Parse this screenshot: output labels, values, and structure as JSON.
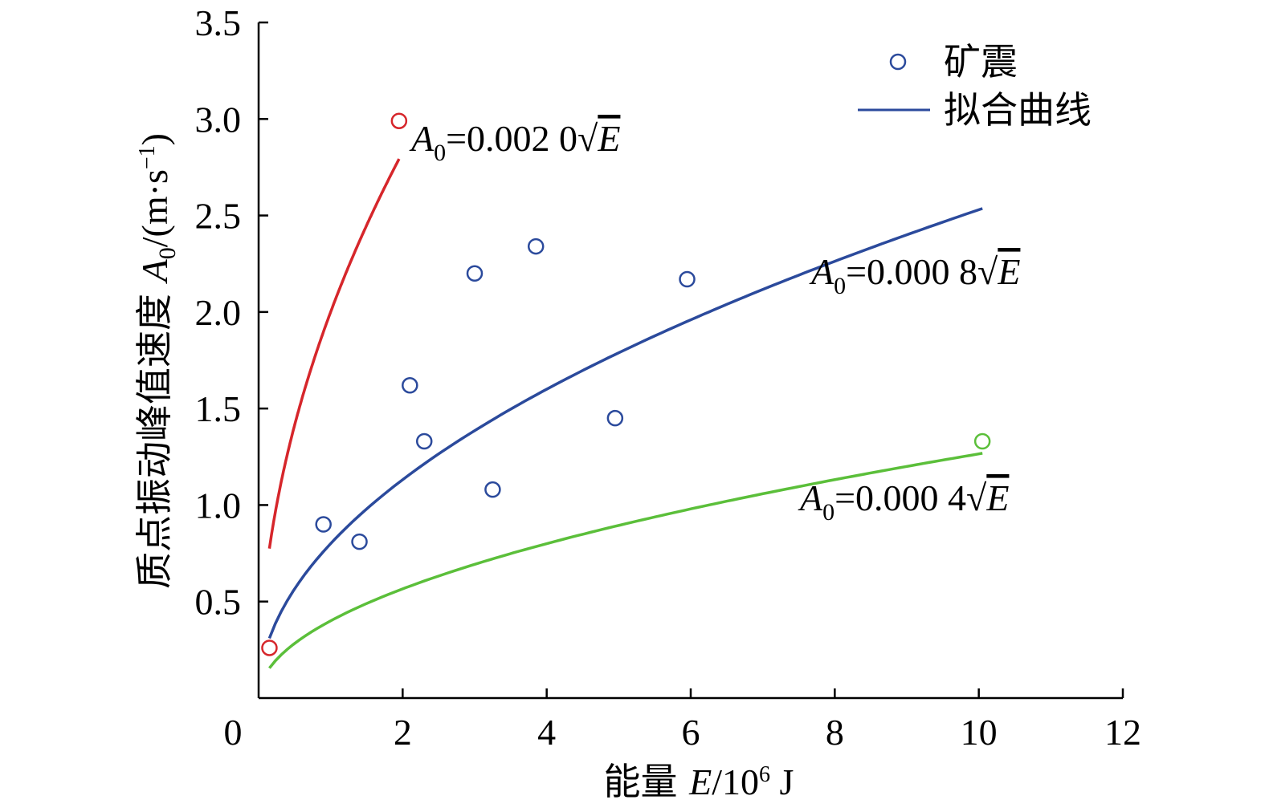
{
  "chart_data": {
    "type": "scatter",
    "xlabel": {
      "prefix": "能量 ",
      "var": "E",
      "unit_text": "/10",
      "exp": "6",
      "unit_tail": " J"
    },
    "ylabel": {
      "prefix": "质点振动峰值速度 ",
      "var": "A",
      "sub": "0",
      "unit_text": "/(m·s",
      "exp": "−1",
      "unit_tail": ")"
    },
    "xlim": [
      0,
      12
    ],
    "ylim": [
      0,
      3.5
    ],
    "x_ticks": [
      "0",
      "2",
      "4",
      "6",
      "8",
      "10",
      "12"
    ],
    "y_ticks": [
      "0.5",
      "1.0",
      "1.5",
      "2.0",
      "2.5",
      "3.0",
      "3.5"
    ],
    "legend": {
      "position": "top-right",
      "scatter_label": "矿震",
      "line_label": "拟合曲线"
    },
    "scatter": {
      "name": "矿震",
      "color": "#2b4a9c",
      "points": [
        [
          0.9,
          0.9
        ],
        [
          1.4,
          0.81
        ],
        [
          2.1,
          1.62
        ],
        [
          2.3,
          1.33
        ],
        [
          3.0,
          2.2
        ],
        [
          3.25,
          1.08
        ],
        [
          3.85,
          2.34
        ],
        [
          4.95,
          1.45
        ],
        [
          5.95,
          2.17
        ]
      ]
    },
    "extra_points": [
      {
        "x": 0.15,
        "y": 0.26,
        "color": "#d6262b"
      },
      {
        "x": 1.95,
        "y": 2.99,
        "color": "#d6262b"
      },
      {
        "x": 10.05,
        "y": 1.33,
        "color": "#5bbf3a"
      }
    ],
    "curves": [
      {
        "color": "#d6262b",
        "coef": 0.002,
        "x_range": [
          0.15,
          1.95
        ],
        "label_prefix": "A",
        "label_sub": "0",
        "label_eq": "=0.002 0√",
        "label_var": "E"
      },
      {
        "color": "#2b4a9c",
        "coef": 0.0008,
        "x_range": [
          0.15,
          10.05
        ],
        "label_prefix": "A",
        "label_sub": "0",
        "label_eq": "=0.000 8√",
        "label_var": "E"
      },
      {
        "color": "#5bbf3a",
        "coef": 0.0004,
        "x_range": [
          0.15,
          10.05
        ],
        "label_prefix": "A",
        "label_sub": "0",
        "label_eq": "=0.000 4√",
        "label_var": "E"
      }
    ]
  }
}
